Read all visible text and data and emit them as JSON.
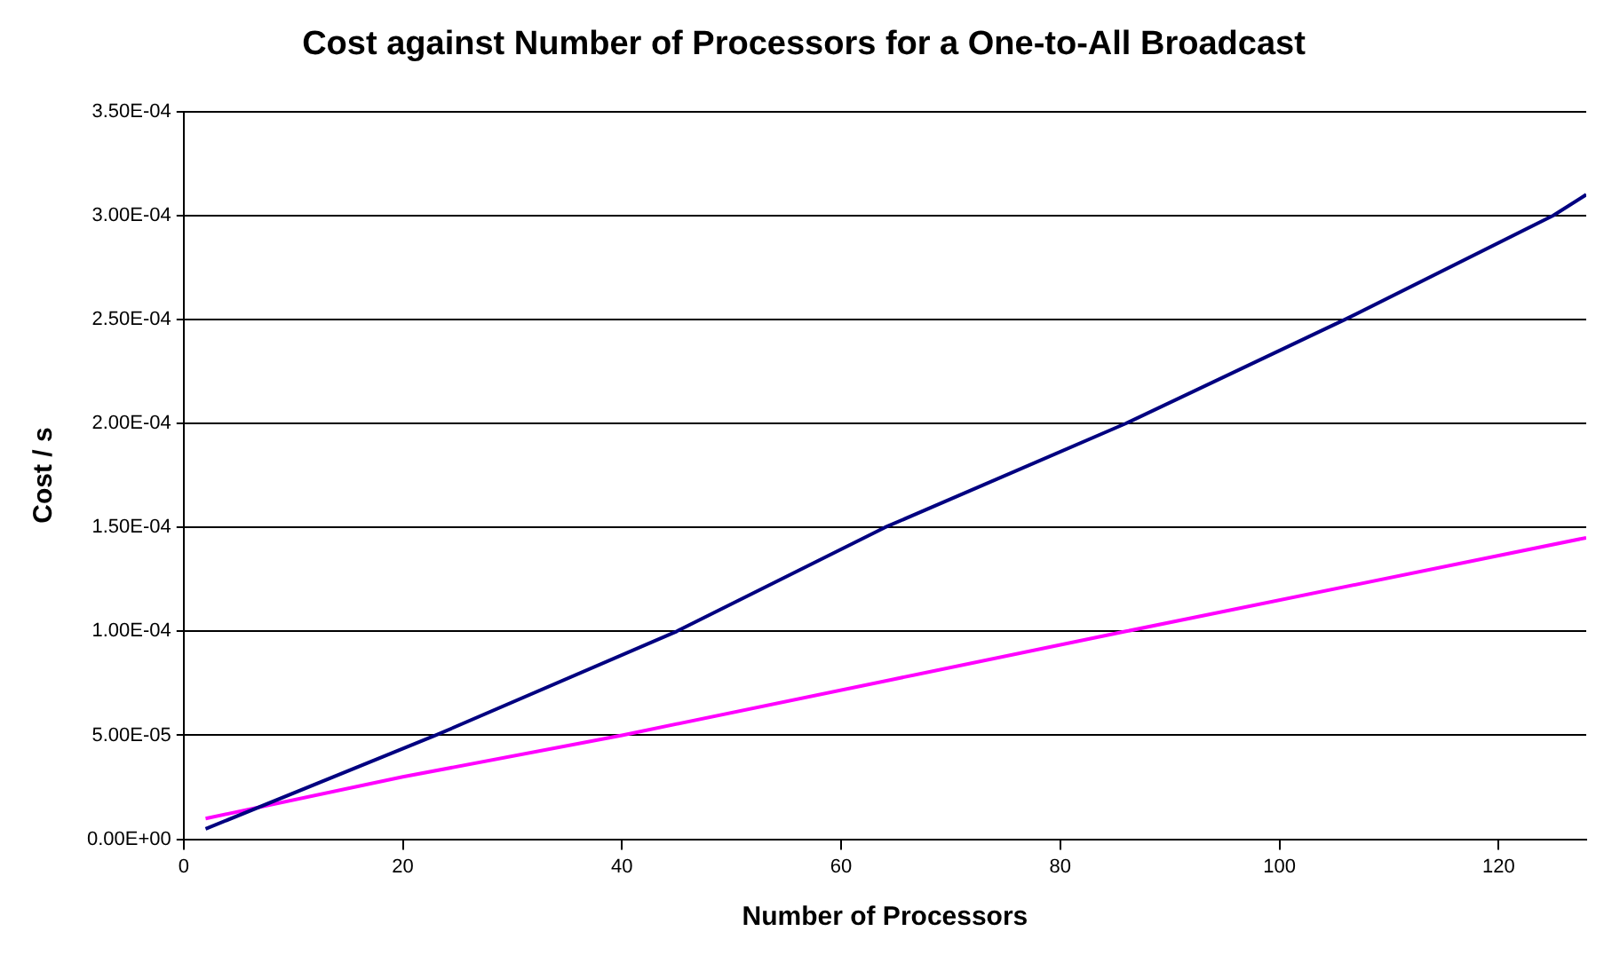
{
  "chart_data": {
    "type": "line",
    "title": "Cost against Number of Processors for a One-to-All Broadcast",
    "xlabel": "Number of Processors",
    "ylabel": "Cost / s",
    "series": [
      {
        "color": "#000080",
        "x": [
          2,
          23,
          45,
          64,
          86,
          106,
          125,
          128
        ],
        "values": [
          5e-06,
          5e-05,
          0.0001,
          0.00015,
          0.0002,
          0.00025,
          0.0003,
          0.00031
        ]
      },
      {
        "color": "#ff00ff",
        "x": [
          2,
          20,
          40,
          86,
          128
        ],
        "values": [
          1e-05,
          3e-05,
          5e-05,
          0.0001,
          0.000145
        ]
      }
    ],
    "xlim": [
      0,
      128
    ],
    "xticks": [
      0,
      20,
      40,
      60,
      80,
      100,
      120
    ],
    "ylim": [
      0,
      0.00035
    ],
    "yticks": [
      {
        "value": 0,
        "label": "0.00E+00"
      },
      {
        "value": 5e-05,
        "label": "5.00E-05"
      },
      {
        "value": 0.0001,
        "label": "1.00E-04"
      },
      {
        "value": 0.00015,
        "label": "1.50E-04"
      },
      {
        "value": 0.0002,
        "label": "2.00E-04"
      },
      {
        "value": 0.00025,
        "label": "2.50E-04"
      },
      {
        "value": 0.0003,
        "label": "3.00E-04"
      },
      {
        "value": 0.00035,
        "label": "3.50E-04"
      }
    ],
    "grid": "y",
    "legend": false,
    "marker": "none",
    "line_style": "solid"
  }
}
